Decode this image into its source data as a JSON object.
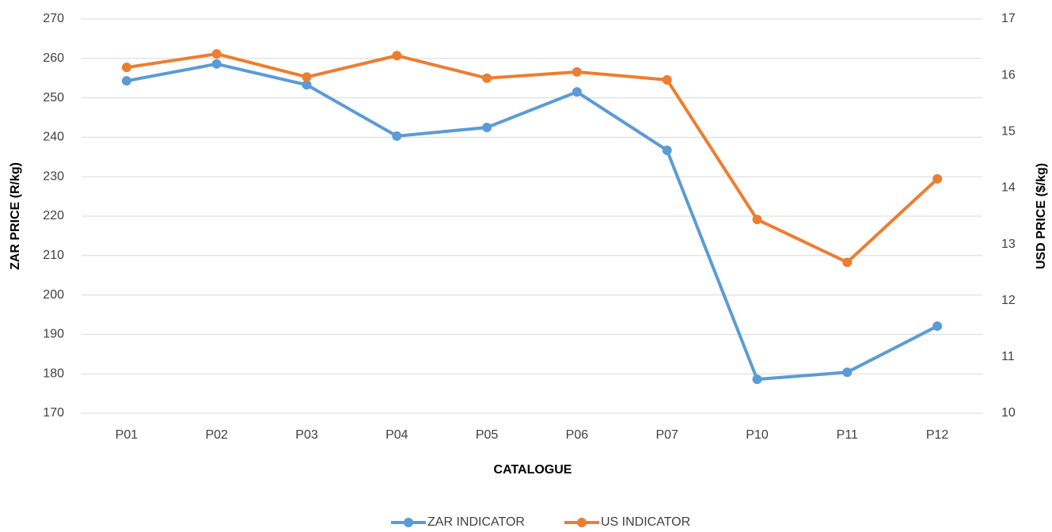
{
  "chart_data": {
    "type": "line",
    "categories": [
      "P01",
      "P02",
      "P03",
      "P04",
      "P05",
      "P06",
      "P07",
      "P10",
      "P11",
      "P12"
    ],
    "series": [
      {
        "name": "ZAR INDICATOR",
        "color": "#5b9bd5",
        "values": [
          254.3,
          258.6,
          253.3,
          240.3,
          242.5,
          251.5,
          236.7,
          178.6,
          180.4,
          192.1
        ]
      },
      {
        "name": "US INDICATOR",
        "color": "#ed7d31",
        "axis": "y2",
        "values": [
          16.14,
          16.38,
          15.97,
          16.35,
          15.95,
          16.06,
          15.92,
          13.44,
          12.68,
          14.16
        ]
      }
    ],
    "xlabel": "CATALOGUE",
    "ylabel": "ZAR PRICE (R/kg)",
    "y2label": "USD PRICE ($/kg)",
    "ylim": [
      170,
      270
    ],
    "yticks": [
      170,
      180,
      190,
      200,
      210,
      220,
      230,
      240,
      250,
      260,
      270
    ],
    "y2lim": [
      10,
      17
    ],
    "y2ticks": [
      10,
      11,
      12,
      13,
      14,
      15,
      16,
      17
    ],
    "grid": true,
    "legend": "bottom"
  }
}
